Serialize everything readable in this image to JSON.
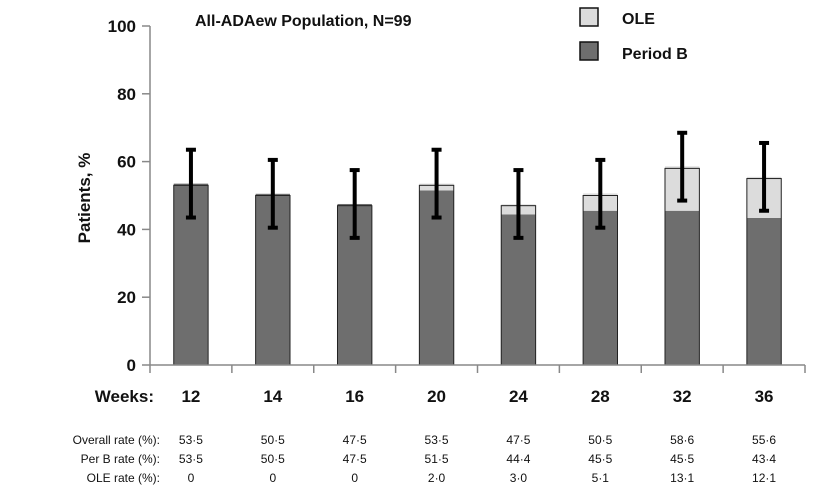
{
  "chart_data": {
    "type": "bar",
    "stacked": true,
    "title": "All-ADAew Population, N=99",
    "ylabel": "Patients, %",
    "xlabel": "Weeks:",
    "ylim": [
      0,
      100
    ],
    "yticks": [
      0,
      20,
      40,
      60,
      80,
      100
    ],
    "grid": false,
    "legend_position": "top-right",
    "categories": [
      "12",
      "14",
      "16",
      "20",
      "24",
      "28",
      "32",
      "36"
    ],
    "series": [
      {
        "name": "Period B",
        "color": "#6e6e6e",
        "values": [
          53.5,
          50.5,
          47.5,
          51.5,
          44.4,
          45.5,
          45.5,
          43.4
        ]
      },
      {
        "name": "OLE",
        "color": "#dcdcdc",
        "values": [
          0,
          0,
          0,
          2.0,
          3.0,
          5.1,
          13.1,
          12.1
        ]
      }
    ],
    "error_bars": {
      "totals": [
        53,
        50,
        47,
        53,
        47,
        50,
        58,
        55
      ],
      "lower": [
        43.5,
        40.5,
        37.5,
        43.5,
        37.5,
        40.5,
        48.5,
        45.5
      ],
      "upper": [
        63.5,
        60.5,
        57.5,
        63.5,
        57.5,
        60.5,
        68.5,
        65.5
      ]
    },
    "table": [
      {
        "label": "Overall rate (%):",
        "values": [
          "53·5",
          "50·5",
          "47·5",
          "53·5",
          "47·5",
          "50·5",
          "58·6",
          "55·6"
        ]
      },
      {
        "label": "Per B rate (%):",
        "values": [
          "53·5",
          "50·5",
          "47·5",
          "51·5",
          "44·4",
          "45·5",
          "45·5",
          "43·4"
        ]
      },
      {
        "label": "OLE rate (%):",
        "values": [
          "0",
          "0",
          "0",
          "2·0",
          "3·0",
          "5·1",
          "13·1",
          "12·1"
        ]
      }
    ]
  }
}
